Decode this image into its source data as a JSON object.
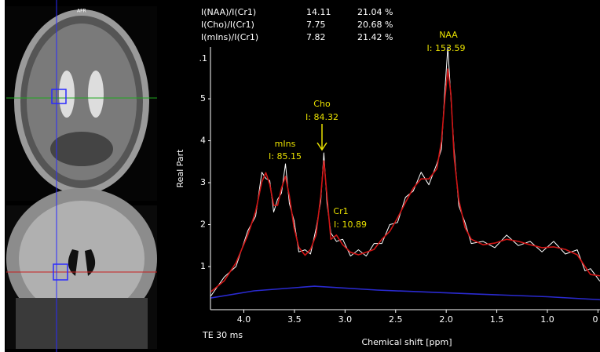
{
  "chart_data": {
    "type": "line",
    "image_label": "AFR",
    "ratio_table": [
      [
        "I(NAA)/I(Cr1)",
        "14.11",
        "21.04 %"
      ],
      [
        "I(Cho)/I(Cr1)",
        "7.75",
        "20.68 %"
      ],
      [
        "I(mIns)/I(Cr1)",
        "7.82",
        "21.42 %"
      ]
    ],
    "annotations": [
      {
        "name": "NAA",
        "text": "I: 153.59"
      },
      {
        "name": "Cho",
        "text": "I: 84.32"
      },
      {
        "name": "mIns",
        "text": "I: 85.15"
      },
      {
        "name": "Cr1",
        "text": "I: 10.89"
      }
    ],
    "ylabel": "Real Part",
    "xlabel": "Chemical shift [ppm]",
    "note": "TE 30 ms",
    "top_label": ".1",
    "xlim": [
      4.33,
      0.48
    ],
    "ylim": [
      0,
      6.3
    ],
    "xticks": [
      {
        "value": 4,
        "label": "4.0"
      },
      3.5,
      {
        "value": 3,
        "label": "3.0"
      },
      2.5,
      {
        "value": 2,
        "label": "2.0"
      },
      1.5,
      {
        "value": 1,
        "label": "1.0"
      },
      {
        "value": 0.5,
        "label": "0"
      }
    ],
    "yticks": [
      1,
      2,
      3,
      4,
      5
    ],
    "series": [
      {
        "color": "#ffffff",
        "x": [
          4.326,
          4.194,
          4.078,
          3.961,
          3.884,
          3.822,
          3.783,
          3.744,
          3.705,
          3.667,
          3.628,
          3.589,
          3.55,
          3.504,
          3.457,
          3.395,
          3.341,
          3.287,
          3.24,
          3.209,
          3.178,
          3.14,
          3.085,
          3.023,
          2.946,
          2.868,
          2.791,
          2.713,
          2.636,
          2.558,
          2.481,
          2.403,
          2.326,
          2.248,
          2.171,
          2.093,
          2.047,
          2.016,
          1.984,
          1.953,
          1.922,
          1.876,
          1.814,
          1.752,
          1.636,
          1.519,
          1.403,
          1.287,
          1.171,
          1.054,
          0.938,
          0.822,
          0.705,
          0.628,
          0.574,
          0.481
        ],
        "values": [
          0.3,
          0.75,
          1.0,
          1.85,
          2.2,
          3.25,
          3.1,
          3.05,
          2.3,
          2.6,
          2.75,
          3.45,
          2.5,
          2.1,
          1.35,
          1.4,
          1.3,
          1.9,
          2.55,
          3.71,
          2.5,
          1.8,
          1.6,
          1.65,
          1.25,
          1.4,
          1.25,
          1.55,
          1.55,
          2.0,
          2.05,
          2.65,
          2.8,
          3.25,
          2.95,
          3.45,
          3.8,
          5.1,
          6.23,
          5.0,
          3.8,
          2.45,
          2.05,
          1.55,
          1.6,
          1.45,
          1.75,
          1.5,
          1.6,
          1.35,
          1.6,
          1.3,
          1.4,
          0.9,
          0.95,
          0.65
        ]
      },
      {
        "color": "#d01414",
        "x": [
          4.326,
          4.194,
          4.078,
          3.961,
          3.884,
          3.822,
          3.783,
          3.744,
          3.705,
          3.667,
          3.628,
          3.589,
          3.55,
          3.504,
          3.457,
          3.395,
          3.341,
          3.287,
          3.24,
          3.209,
          3.178,
          3.14,
          3.085,
          3.023,
          2.946,
          2.868,
          2.791,
          2.713,
          2.636,
          2.558,
          2.481,
          2.403,
          2.326,
          2.248,
          2.171,
          2.093,
          2.047,
          2.016,
          1.984,
          1.953,
          1.922,
          1.876,
          1.814,
          1.752,
          1.636,
          1.519,
          1.403,
          1.287,
          1.171,
          1.054,
          0.938,
          0.822,
          0.705,
          0.628,
          0.574,
          0.481
        ],
        "values": [
          0.4,
          0.66,
          1.09,
          1.75,
          2.31,
          3.02,
          3.24,
          2.96,
          2.46,
          2.46,
          2.87,
          3.15,
          2.68,
          1.93,
          1.46,
          1.27,
          1.41,
          1.75,
          2.68,
          3.52,
          2.68,
          1.65,
          1.75,
          1.52,
          1.34,
          1.28,
          1.34,
          1.41,
          1.65,
          1.84,
          2.16,
          2.53,
          2.87,
          3.09,
          3.09,
          3.33,
          3.99,
          4.92,
          5.71,
          5.11,
          3.62,
          2.59,
          1.93,
          1.65,
          1.52,
          1.56,
          1.65,
          1.6,
          1.52,
          1.45,
          1.47,
          1.41,
          1.28,
          1.0,
          0.81,
          0.78
        ]
      },
      {
        "color": "#2a2ad0",
        "x": [
          4.326,
          3.9,
          3.302,
          2.682,
          1.752,
          1.0,
          0.481
        ],
        "values": [
          0.25,
          0.42,
          0.53,
          0.44,
          0.35,
          0.28,
          0.21
        ]
      }
    ]
  }
}
